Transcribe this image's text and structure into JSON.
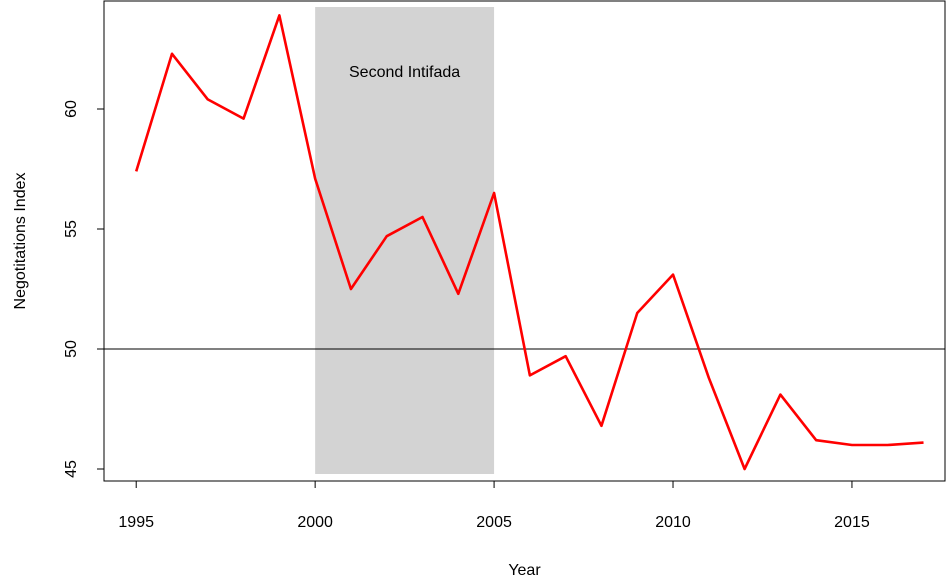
{
  "chart_data": {
    "type": "line",
    "title": "",
    "xlabel": "Year",
    "ylabel": "Negotitations Index",
    "xlim": [
      1994.1,
      2017.6
    ],
    "ylim": [
      44.5,
      64.5
    ],
    "x_ticks": [
      1995,
      2000,
      2005,
      2010,
      2015
    ],
    "y_ticks": [
      45,
      50,
      55,
      60
    ],
    "grid": false,
    "reference_line": {
      "y": 50,
      "color": "#000000"
    },
    "shaded_region": {
      "x_start": 2000,
      "x_end": 2005,
      "label": "Second Intifada",
      "color": "#d3d3d3"
    },
    "series": [
      {
        "color": "#ff0000",
        "x": [
          1995,
          1996,
          1997,
          1998,
          1999,
          2000,
          2001,
          2002,
          2003,
          2004,
          2005,
          2006,
          2007,
          2008,
          2009,
          2010,
          2011,
          2012,
          2013,
          2014,
          2015,
          2016,
          2017
        ],
        "values": [
          57.4,
          62.3,
          60.4,
          59.6,
          63.9,
          57.1,
          52.5,
          54.7,
          55.5,
          52.3,
          56.5,
          48.9,
          49.7,
          46.8,
          51.5,
          53.1,
          48.8,
          45.0,
          48.1,
          46.2,
          46.0,
          46.0,
          46.1
        ]
      }
    ]
  }
}
